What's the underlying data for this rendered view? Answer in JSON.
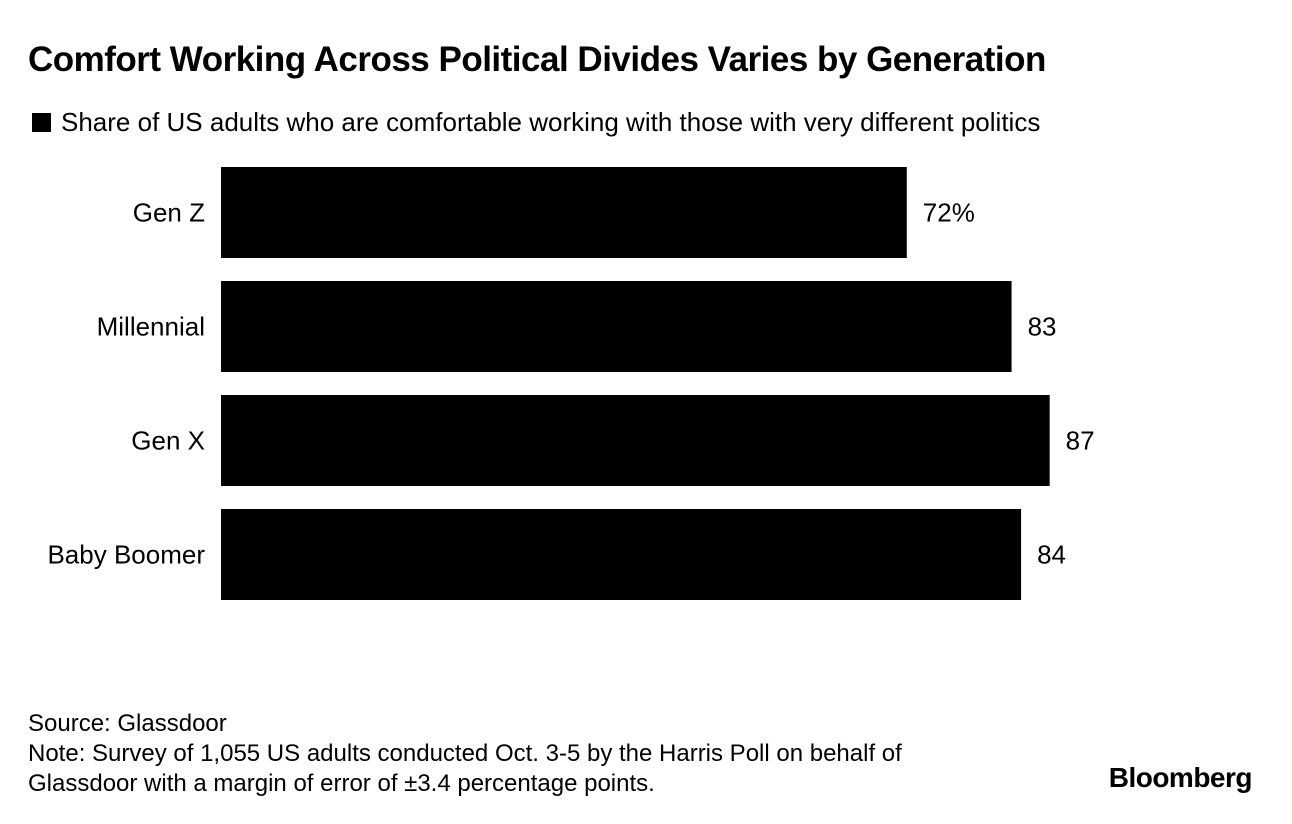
{
  "title": "Comfort Working Across Political Divides Varies by Generation",
  "legend_label": "Share of US adults who are comfortable working with those with very different politics",
  "chart_data": {
    "type": "bar",
    "orientation": "horizontal",
    "title": "Comfort Working Across Political Divides Varies by Generation",
    "categories": [
      "Gen Z",
      "Millennial",
      "Gen X",
      "Baby Boomer"
    ],
    "values": [
      72,
      83,
      87,
      84
    ],
    "value_labels": [
      "72%",
      "83",
      "87",
      "84"
    ],
    "series": [
      {
        "name": "Share of US adults who are comfortable working with those with very different politics",
        "values": [
          72,
          83,
          87,
          84
        ]
      }
    ],
    "xlabel": "",
    "ylabel": "",
    "xlim": [
      0,
      100
    ],
    "grid": false,
    "bar_color": "#000000"
  },
  "footer": {
    "source": "Source: Glassdoor",
    "note_line1": "Note: Survey of 1,055 US adults conducted Oct. 3-5 by the Harris Poll on behalf of",
    "note_line2": "Glassdoor with a margin of error of ±3.4 percentage points."
  },
  "brand": "Bloomberg"
}
